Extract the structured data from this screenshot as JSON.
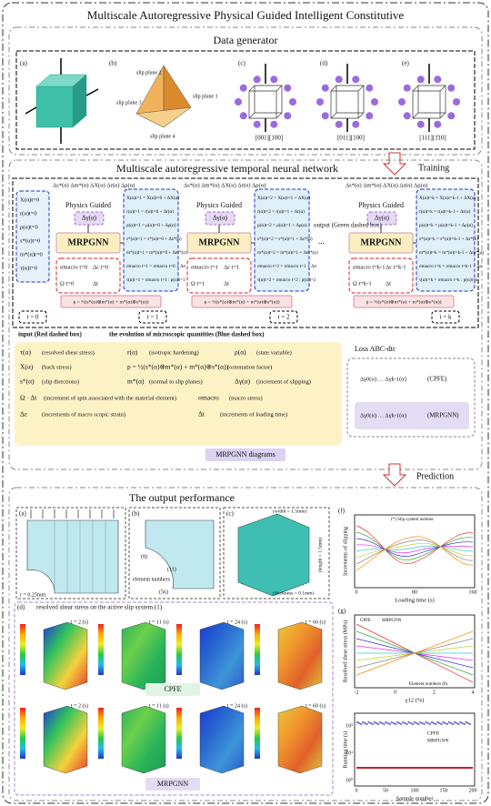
{
  "title": "Multiscale Autoregressive Physical Guided Intelligent Constitutive",
  "data_generator": {
    "title": "Data generator",
    "panel_labels": [
      "(a)",
      "(b)",
      "(c)",
      "(d)",
      "(e)"
    ],
    "slip_planes": [
      "slip plane 2",
      "slip plane 3",
      "slip plane 1",
      "slip plane 4"
    ],
    "loadings": [
      "[001][100]",
      "[011][100]",
      "[111][1̄10]"
    ]
  },
  "arrows": {
    "training": "Training",
    "prediction": "Prediction"
  },
  "network": {
    "title": "Multiscale autoregressive temporal neural network",
    "increments": "Δs*(α)  Δm*(α)  ΔX(α)  Δr(α)  Δρ(α)",
    "physics": "Physics Guided",
    "slip_increment": "Δγ(α)",
    "model": "MRPGNN",
    "orientation": "p = ½(s*(α)⊗m*(α) + m*(α)⊗s*(α))",
    "output_note": "output (Green dashed box)",
    "ellipsis": "...",
    "input_note": "input (Red dashed box)",
    "evolution_note": "the evolution of microscopic quantities (Blue dashed box)",
    "times": [
      "t = 0",
      "t = 1",
      "t = 2",
      "t = k"
    ],
    "initial": [
      "X(α)t=0",
      "r(α)t=0",
      "ρ(α)t=0",
      "s*(α)t=0",
      "m*(α)t=0",
      "τ(α)t=0"
    ],
    "steps": [
      {
        "macro": [
          "σmacro t=0",
          "Δε t=0",
          "Ω t=0",
          "Δt"
        ],
        "state": [
          "X(α)t=1 = X(α)t=0 + ΔX(α)",
          "r(α)t=1 = r(α)t=0 + Δr(α)",
          "ρ(α)t=1 = ρ(α)t=0 + Δρ(α)",
          "s*(α)t=1 = s*(α)t=0 + Δs*(α)",
          "m*(α)t=1 = m*(α)t=0 + Δm*(α)",
          "σmacro t=1 = σmacro t=0 + Δσ",
          "τ(α)t=1 = σmacro t=1 : p(α)t=1"
        ]
      },
      {
        "macro": [
          "σmacro t=1",
          "Δε t=1",
          "Ω t=1",
          "Δt"
        ],
        "state": [
          "X(α)t=2 = X(α)t=1 + ΔX(α)",
          "r(α)t=2 = r(α)t=1 + Δr(α)",
          "ρ(α)t=2 = ρ(α)t=1 + Δρ(α)",
          "s*(α)t=2 = s*(α)t=1 + Δs*(α)",
          "m*(α)t=2 = m*(α)t=1 + Δm*(α)",
          "σmacro t=2 = σmacro t=1 + Δσ",
          "τ(α)t=2 = σmacro t=2 : p(α)t=2"
        ]
      },
      {
        "macro": [
          "σmacro t=k-1",
          "Δε t=k-1",
          "Ω t=k-1",
          "Δt"
        ],
        "state": [
          "X(α)t=k = X(α)t=k-1 + ΔX(α)",
          "r(α)t=k = r(α)t=k-1 + Δr(α)",
          "ρ(α)t=k = ρ(α)t=k-1 + Δρ(α)",
          "s*(α)t=k = s*(α)t=k-1 + Δs*(α)",
          "m*(α)t=k = m*(α)t=k-1 + Δm*(α)",
          "σmacro t=k = σmacro t=k-1 + Δσ",
          "τ(α)t=k = σmacro t=k : p(α)t=k"
        ]
      }
    ]
  },
  "legend": {
    "items": [
      {
        "symbol": "τ(α)",
        "text": "(resolved shear stress)"
      },
      {
        "symbol": "r(α)",
        "text": "(isotropic hardening)"
      },
      {
        "symbol": "ρ(α)",
        "text": "(state variable)"
      },
      {
        "symbol": "X(α)",
        "text": "(back stress)"
      },
      {
        "symbol": "p = ½(s*(α)⊗m*(α) + m*(α)⊗s*(α))",
        "text": "(orientation factor)"
      },
      {
        "symbol": "s*(α)",
        "text": "(slip directions)"
      },
      {
        "symbol": "m*(α)",
        "text": "(normal to slip planes)"
      },
      {
        "symbol": "Δγ(α)",
        "text": "(increment of slipping)"
      },
      {
        "symbol": "Ω · Δt",
        "text": "(increment of spin associated with the material element)"
      },
      {
        "symbol": "σmacro",
        "text": "(macro stress)"
      },
      {
        "symbol": "Δε",
        "text": "(increments of macro  scopic strain)"
      },
      {
        "symbol": "Δt",
        "text": "(increments of loading time)"
      }
    ],
    "loss": "Loss ABC-dtc",
    "rows": [
      {
        "seq": "Δγ0(α)  …  Δγk-1(α)",
        "label": "(CPFE)"
      },
      {
        "seq": "Δγ0(α)  …  Δγk-1(α)",
        "label": "(MRPGNN)"
      }
    ],
    "caption": "MRPGNN diagrams"
  },
  "output": {
    "title": "The output performance",
    "panel_labels": [
      "(a)",
      "(b)",
      "(c)",
      "(d)",
      "(f)",
      "(g)"
    ],
    "radius": "r = 0.25mm",
    "element_numbers": "element numbers",
    "elements": [
      "(8)",
      "(11)",
      "(56)"
    ],
    "width": "(width = 1.5mm)",
    "length": "(length = 1.5mm)",
    "thickness": "(thickness = 0.1mm)",
    "field_title": "resolved shear stress on the active slip system (1)",
    "times": [
      "t = 2 (s)",
      "t = 11 (s)",
      "t = 24 (s)",
      "t = 60 (s)"
    ],
    "cpfe": "CPFE",
    "mrpgnn": "MRPGNN",
    "slip_chart": {
      "ylabel": "Increments of slipping",
      "xlabel": "Loading time (s)",
      "note": "(*) Slip system number",
      "xticks": [
        "0",
        "80",
        "160"
      ]
    },
    "stress_chart": {
      "ylabel": "Resolved shear stress (MPa)",
      "xlabel": "γ12 (%)",
      "note": "Element numbers (8)",
      "xticks": [
        "-2",
        "0",
        "2",
        "4"
      ]
    },
    "time_chart": {
      "ylabel": "Running time (s)",
      "xlabel": "Sample number",
      "xticks": [
        "0",
        "50",
        "100",
        "150",
        "200"
      ],
      "yticks": [
        "10⁰",
        "10¹",
        "10²"
      ]
    }
  }
}
